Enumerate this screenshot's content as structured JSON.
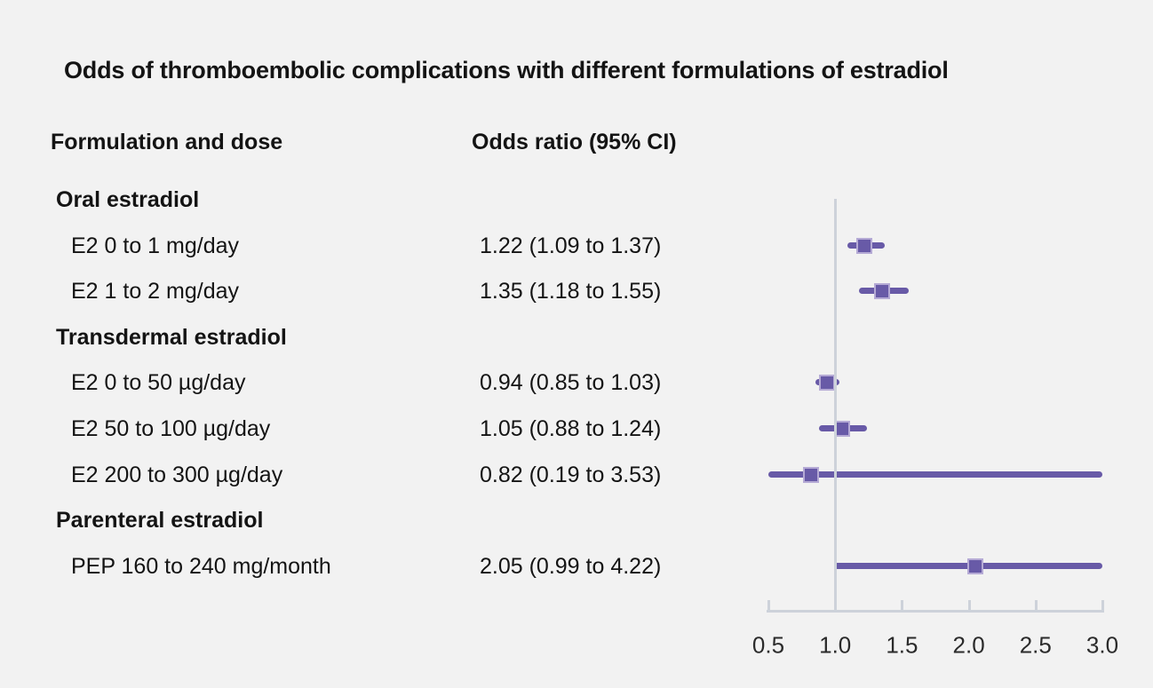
{
  "title": "Odds of thromboembolic complications with different formulations of estradiol",
  "columns": {
    "formulation": "Formulation and dose",
    "odds_ratio": "Odds ratio (95% CI)"
  },
  "chart_data": {
    "type": "forest",
    "title": "Odds of thromboembolic complications with different formulations of estradiol",
    "column_headers": [
      "Formulation and dose",
      "Odds ratio (95% CI)"
    ],
    "groups": [
      {
        "label": "Oral estradiol",
        "rows": [
          {
            "label": "E2 0 to 1 mg/day",
            "value_text": "1.22 (1.09 to 1.37)",
            "estimate": 1.22,
            "ci_low": 1.09,
            "ci_high": 1.37
          },
          {
            "label": "E2 1 to 2 mg/day",
            "value_text": "1.35 (1.18 to 1.55)",
            "estimate": 1.35,
            "ci_low": 1.18,
            "ci_high": 1.55
          }
        ]
      },
      {
        "label": "Transdermal estradiol",
        "rows": [
          {
            "label": "E2 0 to 50 µg/day",
            "value_text": "0.94 (0.85 to 1.03)",
            "estimate": 0.94,
            "ci_low": 0.85,
            "ci_high": 1.03
          },
          {
            "label": "E2 50 to 100 µg/day",
            "value_text": "1.05 (0.88 to 1.24)",
            "estimate": 1.05,
            "ci_low": 0.88,
            "ci_high": 1.24
          },
          {
            "label": "E2 200 to 300 µg/day",
            "value_text": "0.82 (0.19 to 3.53)",
            "estimate": 0.82,
            "ci_low": 0.19,
            "ci_high": 3.53
          }
        ]
      },
      {
        "label": "Parenteral estradiol",
        "rows": [
          {
            "label": "PEP 160 to 240 mg/month",
            "value_text": "2.05 (0.99 to 4.22)",
            "estimate": 2.05,
            "ci_low": 0.99,
            "ci_high": 4.22
          }
        ]
      }
    ],
    "axis": {
      "min": 0.5,
      "max": 3.0,
      "reference": 1.0,
      "tick_values": [
        0.5,
        1.0,
        1.5,
        2.0,
        2.5,
        3.0
      ],
      "tick_labels": [
        "0.5",
        "1.0",
        "1.5",
        "2.0",
        "2.5",
        "3.0"
      ]
    },
    "colors": {
      "marker": "#685AA7",
      "marker_border": "#B5AAD5",
      "axis": "#CDD2DA",
      "background": "#F2F2F2",
      "text": "#141414"
    }
  }
}
